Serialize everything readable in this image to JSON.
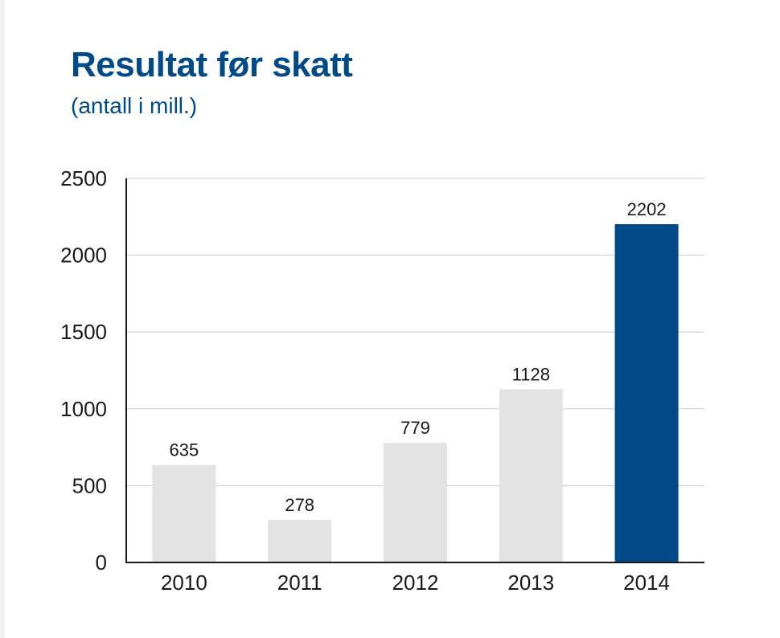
{
  "chart_data": {
    "type": "bar",
    "title": "Resultat før skatt",
    "subtitle": "(antall i mill.)",
    "xlabel": "",
    "ylabel": "",
    "categories": [
      "2010",
      "2011",
      "2012",
      "2013",
      "2014"
    ],
    "values": [
      635,
      278,
      779,
      1128,
      2202
    ],
    "data_labels": [
      "635",
      "278",
      "779",
      "1128",
      "2202"
    ],
    "ylim": [
      0,
      2500
    ],
    "yticks": [
      0,
      500,
      1000,
      1500,
      2000,
      2500
    ],
    "ytick_labels": [
      "0",
      "500",
      "1000",
      "1500",
      "2000",
      "2500"
    ],
    "grid": true,
    "legend": "none",
    "colors": {
      "default_bar": "#e3e3e3",
      "highlight_bar": "#004a87",
      "title": "#004a87",
      "gridline": "#cccccc",
      "axis": "#1a1a1a"
    },
    "highlight_index": 4
  }
}
